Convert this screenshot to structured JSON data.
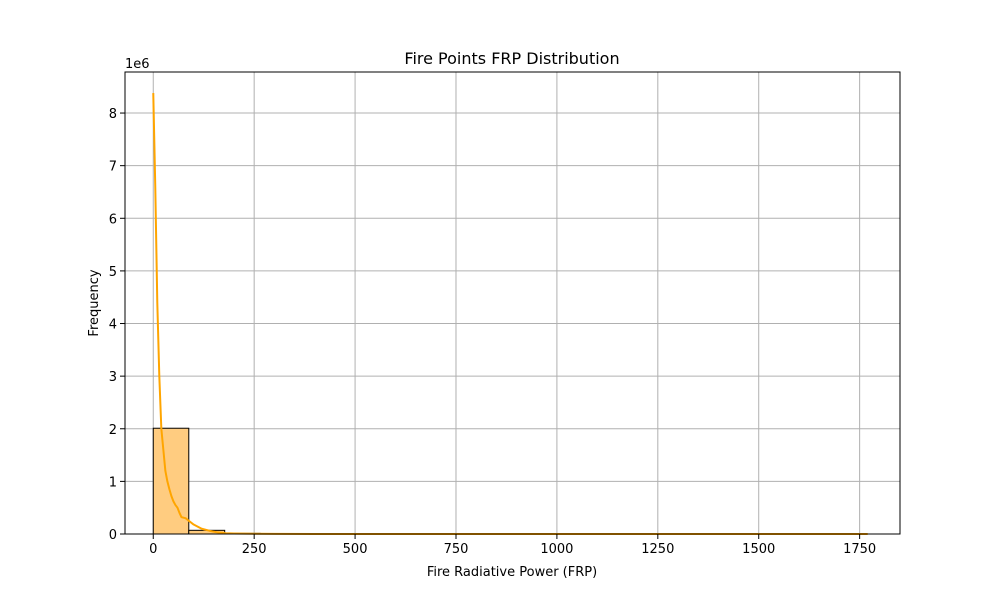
{
  "chart_data": {
    "type": "bar",
    "title": "Fire Points FRP Distribution",
    "xlabel": "Fire Radiative Power (FRP)",
    "ylabel": "Frequency",
    "y_scale_label": "1e6",
    "xlim": [
      -70,
      1850
    ],
    "ylim": [
      0,
      8.78
    ],
    "x_ticks": [
      0,
      250,
      500,
      750,
      1000,
      1250,
      1500,
      1750
    ],
    "y_ticks": [
      0,
      1,
      2,
      3,
      4,
      5,
      6,
      7,
      8
    ],
    "grid": true,
    "legend": "none",
    "histogram": {
      "name": "",
      "bins": [
        {
          "x0": 0,
          "x1": 88,
          "value": 2.01
        },
        {
          "x0": 88,
          "x1": 177,
          "value": 0.07
        },
        {
          "x0": 177,
          "x1": 265,
          "value": 0.012
        },
        {
          "x0": 265,
          "x1": 354,
          "value": 0.004
        },
        {
          "x0": 354,
          "x1": 442,
          "value": 0.002
        },
        {
          "x0": 442,
          "x1": 531,
          "value": 0.001
        },
        {
          "x0": 531,
          "x1": 619,
          "value": 0.0006
        },
        {
          "x0": 619,
          "x1": 708,
          "value": 0.0004
        },
        {
          "x0": 708,
          "x1": 796,
          "value": 0.0003
        },
        {
          "x0": 796,
          "x1": 885,
          "value": 0.0002
        },
        {
          "x0": 885,
          "x1": 973,
          "value": 0.0001
        },
        {
          "x0": 973,
          "x1": 1062,
          "value": 0.0001
        },
        {
          "x0": 1062,
          "x1": 1150,
          "value": 0.0001
        },
        {
          "x0": 1150,
          "x1": 1239,
          "value": 0.0001
        },
        {
          "x0": 1239,
          "x1": 1327,
          "value": 0.0001
        },
        {
          "x0": 1327,
          "x1": 1416,
          "value": 0.0001
        },
        {
          "x0": 1416,
          "x1": 1504,
          "value": 0.0001
        },
        {
          "x0": 1504,
          "x1": 1593,
          "value": 0.0001
        },
        {
          "x0": 1593,
          "x1": 1681,
          "value": 0.0001
        },
        {
          "x0": 1681,
          "x1": 1770,
          "value": 0.0001
        }
      ]
    },
    "kde": {
      "name": "",
      "x": [
        0,
        5,
        10,
        15,
        20,
        25,
        30,
        35,
        40,
        45,
        50,
        55,
        60,
        65,
        70,
        80,
        90,
        100,
        120,
        140,
        160,
        180,
        200,
        250,
        300,
        400,
        500,
        750,
        1000,
        1250,
        1500,
        1770
      ],
      "y": [
        8.38,
        6.6,
        4.4,
        3.0,
        2.0,
        1.6,
        1.2,
        1.0,
        0.85,
        0.72,
        0.62,
        0.55,
        0.5,
        0.4,
        0.32,
        0.3,
        0.24,
        0.18,
        0.1,
        0.06,
        0.03,
        0.015,
        0.01,
        0.004,
        0.002,
        0.001,
        0.0006,
        0.0003,
        0.0002,
        0.0001,
        0.0001,
        0.0001
      ]
    },
    "colors": {
      "bar_fill": "#ffcc80",
      "bar_edge": "#000000",
      "kde_line": "#ffa500",
      "grid": "#b0b0b0",
      "axis": "#000000"
    }
  }
}
